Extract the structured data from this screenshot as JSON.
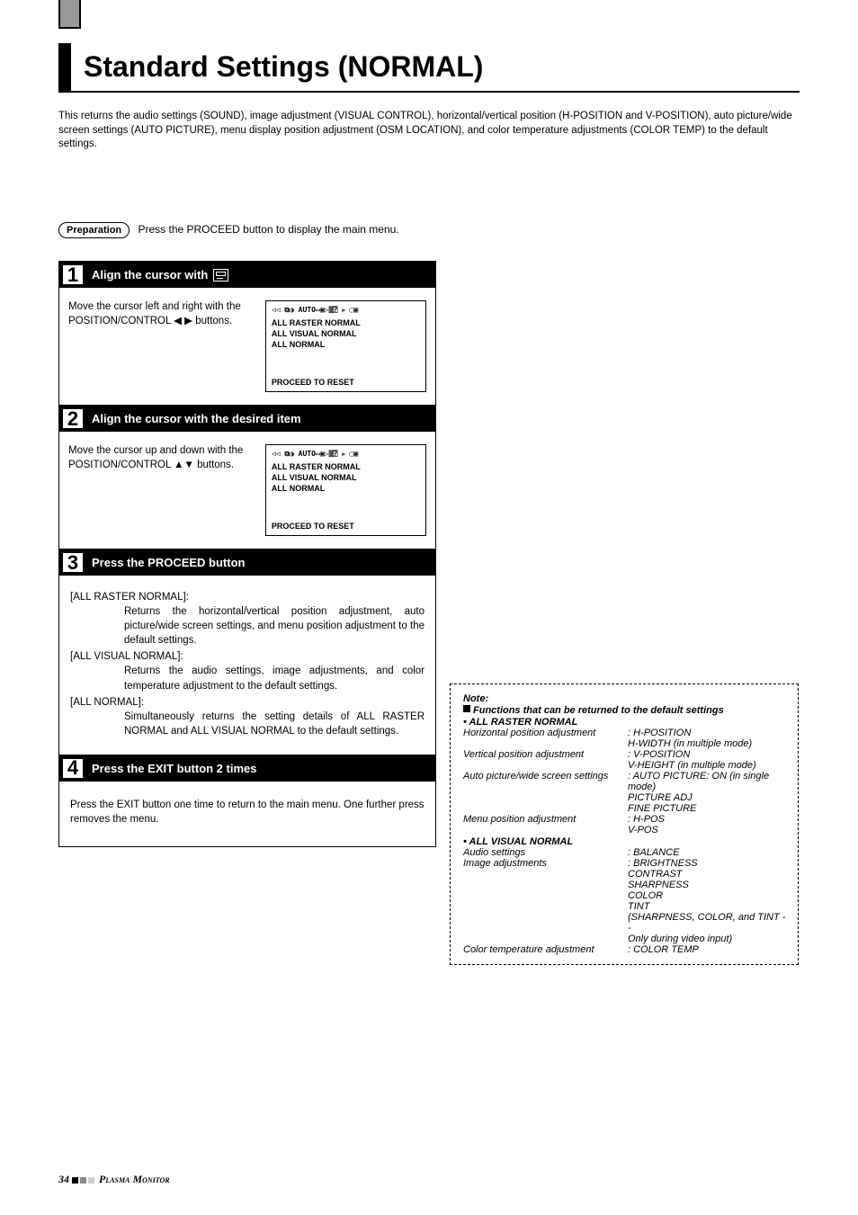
{
  "title": "Standard Settings (NORMAL)",
  "intro": "This returns the audio settings (SOUND), image adjustment (VISUAL CONTROL), horizontal/vertical position (H-POSITION and V-POSITION), auto picture/wide screen settings (AUTO PICTURE), menu display position adjustment (OSM LOCATION), and color temperature adjustments (COLOR TEMP) to the default settings.",
  "prep_label": "Preparation",
  "prep_text": "Press the PROCEED button to display the main menu.",
  "steps": {
    "s1": {
      "num": "1",
      "title": "Align the cursor with",
      "left": "Move the cursor left and right with the POSITION/CONTROL ◀ ▶ buttons.",
      "osm_icons": "◁◁ ⧉◑ AUTO▭▣▷⫿⫿⍰ ⊧ ▢▣",
      "osm1": "ALL RASTER NORMAL",
      "osm2": "ALL VISUAL NORMAL",
      "osm3": "ALL NORMAL",
      "osm_bottom": "PROCEED TO RESET"
    },
    "s2": {
      "num": "2",
      "title": "Align the cursor with the desired item",
      "left": "Move the cursor up and down with the POSITION/CONTROL ▲▼ buttons.",
      "osm_icons": "◁◁ ⧉◑ AUTO▭▣▷⫿⫿⍰ ⊧ ▢▣",
      "osm1": "ALL RASTER NORMAL",
      "osm2": "ALL VISUAL NORMAL",
      "osm3": "ALL NORMAL",
      "osm_bottom": "PROCEED TO RESET"
    },
    "s3": {
      "num": "3",
      "title": "Press the PROCEED button",
      "l1": "[ALL RASTER NORMAL]:",
      "t1": "Returns the horizontal/vertical position adjustment, auto picture/wide screen settings, and menu position adjustment to the default settings.",
      "l2": "[ALL VISUAL NORMAL]:",
      "t2": "Returns the audio settings, image adjustments, and color temperature adjustment to the default settings.",
      "l3": "[ALL NORMAL]:",
      "t3": "Simultaneously returns the setting details of ALL RASTER NORMAL and ALL VISUAL NORMAL to the default settings."
    },
    "s4": {
      "num": "4",
      "title": "Press the EXIT button 2 times",
      "body": "Press the EXIT button one time to return to the main menu. One further press removes the menu."
    }
  },
  "note": {
    "title": "Note:",
    "subtitle": "Functions that can be returned to the default settings",
    "section1": "• ALL RASTER NORMAL",
    "rows1": [
      [
        "Horizontal position adjustment",
        ": H-POSITION"
      ],
      [
        "",
        "  H-WIDTH (in multiple mode)"
      ],
      [
        "Vertical position adjustment",
        ": V-POSITION"
      ],
      [
        "",
        "  V-HEIGHT (in multiple mode)"
      ],
      [
        "Auto picture/wide screen settings",
        ": AUTO PICTURE: ON (in single mode)"
      ],
      [
        "",
        "  PICTURE ADJ"
      ],
      [
        "",
        "  FINE PICTURE"
      ],
      [
        "Menu position adjustment",
        ": H-POS"
      ],
      [
        "",
        "  V-POS"
      ]
    ],
    "section2": "• ALL VISUAL NORMAL",
    "rows2": [
      [
        "Audio settings",
        ": BALANCE"
      ],
      [
        "Image adjustments",
        ": BRIGHTNESS"
      ],
      [
        "",
        "  CONTRAST"
      ],
      [
        "",
        "  SHARPNESS"
      ],
      [
        "",
        "  COLOR"
      ],
      [
        "",
        "  TINT"
      ],
      [
        "",
        "  (SHARPNESS, COLOR, and TINT --"
      ],
      [
        "",
        "  Only during video input)"
      ],
      [
        "Color temperature adjustment",
        ": COLOR TEMP"
      ]
    ]
  },
  "footer_page": "34",
  "footer_text": "Plasma Monitor"
}
